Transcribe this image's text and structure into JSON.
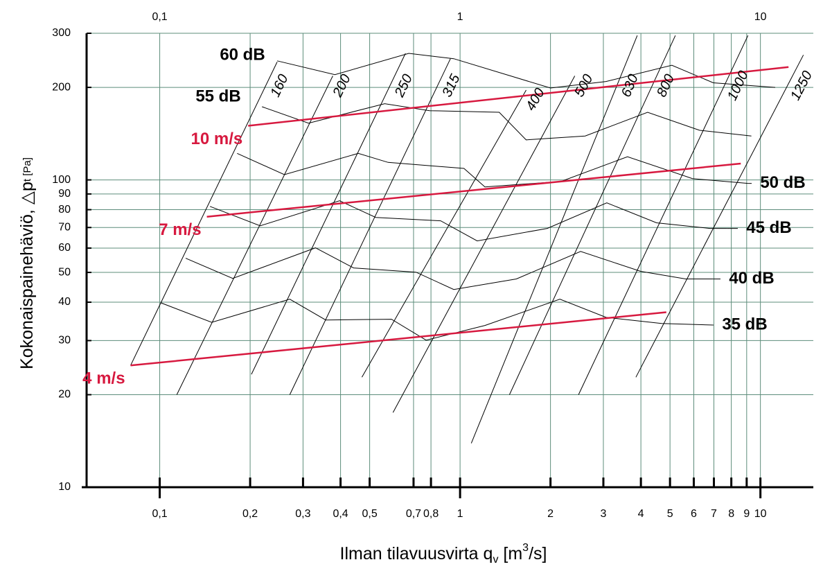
{
  "chart_data": {
    "type": "line",
    "xscale": "log",
    "yscale": "log",
    "grid": true,
    "xlim": [
      0.055,
      15
    ],
    "ylim": [
      10,
      300
    ],
    "xticks": [
      {
        "value": 0.1,
        "label": "0,1"
      },
      {
        "value": 0.2,
        "label": "0,2"
      },
      {
        "value": 0.3,
        "label": "0,3"
      },
      {
        "value": 0.4,
        "label": "0,4"
      },
      {
        "value": 0.5,
        "label": "0,5"
      },
      {
        "value": 0.7,
        "label": "0,7"
      },
      {
        "value": 0.8,
        "label": "0,8"
      },
      1,
      2,
      3,
      4,
      5,
      6,
      7,
      8,
      9,
      10
    ],
    "xticks_top": [
      {
        "value": 0.1,
        "label": "0,1"
      },
      1,
      10
    ],
    "yticks": [
      10,
      20,
      30,
      40,
      50,
      60,
      70,
      80,
      90,
      100,
      200,
      300
    ],
    "x_label": {
      "main": "Ilman tilavuusvirta q",
      "sub": "v",
      "unit_a": " [m",
      "sup": "3",
      "unit_b": "/s]"
    },
    "y_label": {
      "main": "Kokonaispainehäviö, △p",
      "sub": "t [Pa]"
    },
    "series": [
      {
        "name": "4 m/s",
        "color": "#d7193f",
        "x": [
          0.08,
          4.86
        ],
        "values": [
          24.9,
          37.1
        ]
      },
      {
        "name": "7 m/s",
        "color": "#d7193f",
        "x": [
          0.1435,
          8.6
        ],
        "values": [
          75.9,
          113
        ]
      },
      {
        "name": "10 m/s",
        "color": "#d7193f",
        "x": [
          0.197,
          12.4
        ],
        "values": [
          150,
          233
        ]
      }
    ],
    "duct_series": [
      {
        "name": "160",
        "color": "#000000",
        "x": [
          0.08,
          0.246
        ],
        "values": [
          24.9,
          242
        ]
      },
      {
        "name": "200",
        "color": "#000000",
        "x": [
          0.114,
          0.377
        ],
        "values": [
          20.0,
          218
        ]
      },
      {
        "name": "250",
        "color": "#000000",
        "x": [
          0.202,
          0.658
        ],
        "values": [
          23.3,
          258
        ]
      },
      {
        "name": "315",
        "color": "#000000",
        "x": [
          0.271,
          0.929
        ],
        "values": [
          20.0,
          248
        ]
      },
      {
        "name": "400",
        "color": "#000000",
        "x": [
          0.471,
          1.66
        ],
        "values": [
          22.8,
          196
        ]
      },
      {
        "name": "500",
        "color": "#000000",
        "x": [
          0.598,
          2.41
        ],
        "values": [
          17.5,
          218
        ]
      },
      {
        "name": "630",
        "color": "#000000",
        "x": [
          1.09,
          3.89
        ],
        "values": [
          13.9,
          295
        ]
      },
      {
        "name": "800",
        "color": "#000000",
        "x": [
          1.46,
          5.21
        ],
        "values": [
          20.0,
          295
        ]
      },
      {
        "name": "1000",
        "color": "#000000",
        "x": [
          2.48,
          9.09
        ],
        "values": [
          20.0,
          295
        ]
      },
      {
        "name": "1250",
        "color": "#000000",
        "x": [
          3.85,
          13.9
        ],
        "values": [
          22.8,
          255
        ]
      }
    ],
    "sound_series": [
      {
        "name": "35 dB",
        "color": "#000000",
        "x": [
          0.101,
          0.149,
          0.271,
          0.357,
          0.591,
          0.771,
          1.21,
          2.15,
          3.06,
          4.69,
          6.97
        ],
        "values": [
          39.8,
          34.4,
          40.9,
          35.0,
          35.2,
          30.1,
          33.6,
          40.9,
          35.7,
          34.1,
          33.7
        ]
      },
      {
        "name": "40 dB",
        "color": "#000000",
        "x": [
          0.122,
          0.175,
          0.33,
          0.442,
          0.713,
          0.953,
          1.54,
          2.52,
          3.99,
          5.64,
          6.97
        ],
        "values": [
          55.6,
          47.8,
          60.1,
          51.7,
          50.1,
          44.0,
          47.6,
          58.5,
          50.4,
          47.6,
          47.6
        ]
      },
      {
        "name": "45 dB",
        "color": "#000000",
        "x": [
          0.147,
          0.216,
          0.397,
          0.524,
          0.862,
          1.14,
          1.95,
          3.08,
          4.51,
          6.79,
          7.75
        ],
        "values": [
          82.0,
          70.9,
          85.5,
          75.5,
          73.6,
          63.3,
          69.5,
          84.2,
          72.5,
          69.5,
          69.5
        ]
      },
      {
        "name": "50 dB",
        "color": "#000000",
        "x": [
          0.181,
          0.26,
          0.458,
          0.576,
          1.03,
          1.21,
          2.17,
          3.61,
          5.94,
          9.09
        ],
        "values": [
          122,
          104,
          122,
          114,
          109,
          94.9,
          98.9,
          119,
          101,
          97.4
        ]
      },
      {
        "name": "55 dB",
        "color": "#000000",
        "x": [
          0.219,
          0.313,
          0.561,
          0.792,
          1.35,
          1.66,
          2.61,
          4.21,
          6.27,
          9.33
        ],
        "values": [
          173,
          153,
          177,
          168,
          166,
          135,
          139,
          166,
          145,
          139
        ]
      },
      {
        "name": "60 dB",
        "color": "#000000",
        "x": [
          0.246,
          0.383,
          0.675,
          0.953,
          2.0,
          3.06,
          5.07,
          6.97,
          11.2
        ],
        "values": [
          244,
          220,
          258,
          248,
          199,
          209,
          236,
          207,
          200
        ]
      }
    ]
  }
}
